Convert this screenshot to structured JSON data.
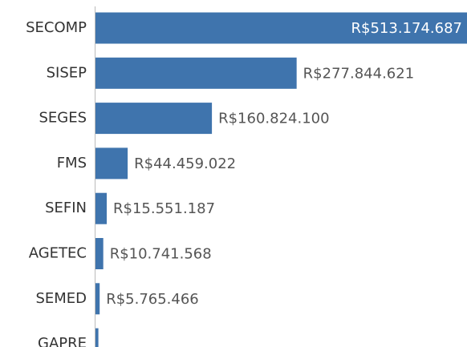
{
  "chart_data": {
    "type": "bar",
    "orientation": "horizontal",
    "categories": [
      "SECOMP",
      "SISEP",
      "SEGES",
      "FMS",
      "SEFIN",
      "AGETEC",
      "SEMED",
      "GAPRE"
    ],
    "values": [
      513174687,
      277844621,
      160824100,
      44459022,
      15551187,
      10741568,
      5765466,
      4000000
    ],
    "value_labels": [
      "R$513.174.687",
      "R$277.844.621",
      "R$160.824.100",
      "R$44.459.022",
      "R$15.551.187",
      "R$10.741.568",
      "R$5.765.466",
      null
    ],
    "color": "#3f74ad",
    "xlim": [
      0,
      513174687
    ]
  }
}
